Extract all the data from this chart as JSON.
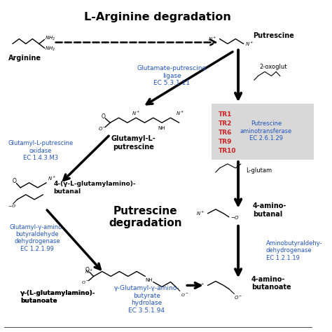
{
  "title": "L-Arginine degradation",
  "subtitle": "Putrescine\ndegradation",
  "bg_color": "#ffffff",
  "blue_color": "#2255bb",
  "red_color": "#cc2222",
  "gray_box_color": "#cccccc",
  "enzyme_labels": {
    "glutamate_putrescine_ligase": "Glutamate-putrescine\nligase\nEC 5.3.1.11",
    "glutamyl_putrescine_oxidase": "Glutamyl-L-putrescine\noxidase\nEC 1.4.3.M3",
    "putrescine_aminotransferase": "Putrescine\naminotransferase\nEC 2.6.1.29",
    "glutamyl_aminobutyraldehyde_dh": "Glutamyl-γ-amino-\nbutyraldehyde\ndehydrogenase\nEC 1.2.1.99",
    "aminobutyraldehyde_dh": "Aminobutyraldehy-\ndehydrogenase\nEC 1.2.1.19",
    "gamma_glutamyl_hydrolase": "γ-Glutamyl-γ-amino-\nbutyrate\nhydrolase\nEC 3.5.1.94"
  },
  "compound_labels": {
    "arginine": "Arginine",
    "putrescine": "Putrescine",
    "glutamyl_putrescine": "Glutamyl-L-\nputrescine",
    "glutamylamino_butanal": "4-(γ-L-glutamylamino)-\nbutanal",
    "glutamylamino_butanoate": "γ-(L-glutamylamino)-\nbutanoate",
    "aminobutanal": "4-amino-\nbutanal",
    "aminobutanoate": "4-amino-\nbutanoate",
    "oxoglut": "2-oxoglut",
    "lglutam": "L-glutam"
  },
  "tr_labels": [
    "TR1",
    "TR2",
    "TR6",
    "TR9",
    "TR10"
  ]
}
